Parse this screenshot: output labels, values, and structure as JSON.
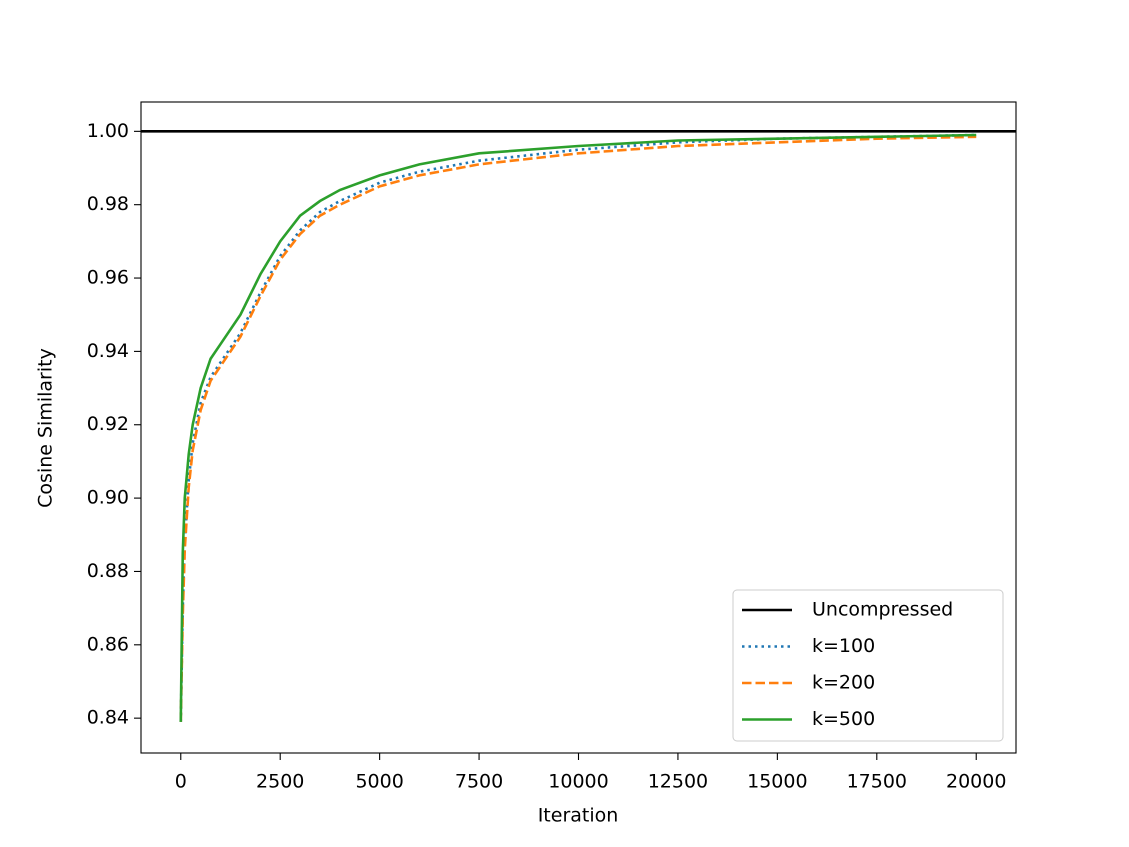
{
  "chart_data": {
    "type": "line",
    "xlabel": "Iteration",
    "ylabel": "Cosine Similarity",
    "x": [
      0,
      50,
      100,
      200,
      300,
      500,
      750,
      1000,
      1500,
      2000,
      2500,
      3000,
      3500,
      4000,
      5000,
      6000,
      7500,
      10000,
      12500,
      15000,
      17500,
      20000
    ],
    "series": [
      {
        "name": "Uncompressed",
        "color": "#000000",
        "style": "solid",
        "hline": {
          "value": 1,
          "label": "1.00"
        }
      },
      {
        "name": "k=100",
        "color": "#1f77b4",
        "style": "dotted",
        "values": [
          0.839,
          0.87,
          0.888,
          0.905,
          0.915,
          0.926,
          0.933,
          0.937,
          0.945,
          0.956,
          0.966,
          0.973,
          0.978,
          0.981,
          0.986,
          0.989,
          0.992,
          0.995,
          0.997,
          0.998,
          0.9985,
          0.999
        ]
      },
      {
        "name": "k=200",
        "color": "#ff7f0e",
        "style": "dashed",
        "values": [
          0.839,
          0.868,
          0.886,
          0.903,
          0.913,
          0.924,
          0.932,
          0.936,
          0.944,
          0.955,
          0.965,
          0.972,
          0.977,
          0.98,
          0.985,
          0.988,
          0.991,
          0.994,
          0.996,
          0.997,
          0.998,
          0.9985
        ]
      },
      {
        "name": "k=500",
        "color": "#2ca02c",
        "style": "solid",
        "values": [
          0.839,
          0.885,
          0.9,
          0.912,
          0.92,
          0.93,
          0.938,
          0.942,
          0.95,
          0.961,
          0.97,
          0.977,
          0.981,
          0.984,
          0.988,
          0.991,
          0.994,
          0.996,
          0.9975,
          0.998,
          0.9985,
          0.999
        ]
      }
    ],
    "xlim": [
      -1000,
      21000
    ],
    "xticks": [
      0,
      2500,
      5000,
      7500,
      10000,
      12500,
      15000,
      17500,
      20000
    ],
    "ylim": [
      0.8305,
      1.008
    ],
    "yticks": [
      0.84,
      0.86,
      0.88,
      {
        "value": 0.9,
        "label": "0.90"
      },
      0.92,
      0.94,
      0.96,
      0.98,
      {
        "value": 1,
        "label": "1.00"
      }
    ],
    "grid": false,
    "legend": "lower right"
  }
}
